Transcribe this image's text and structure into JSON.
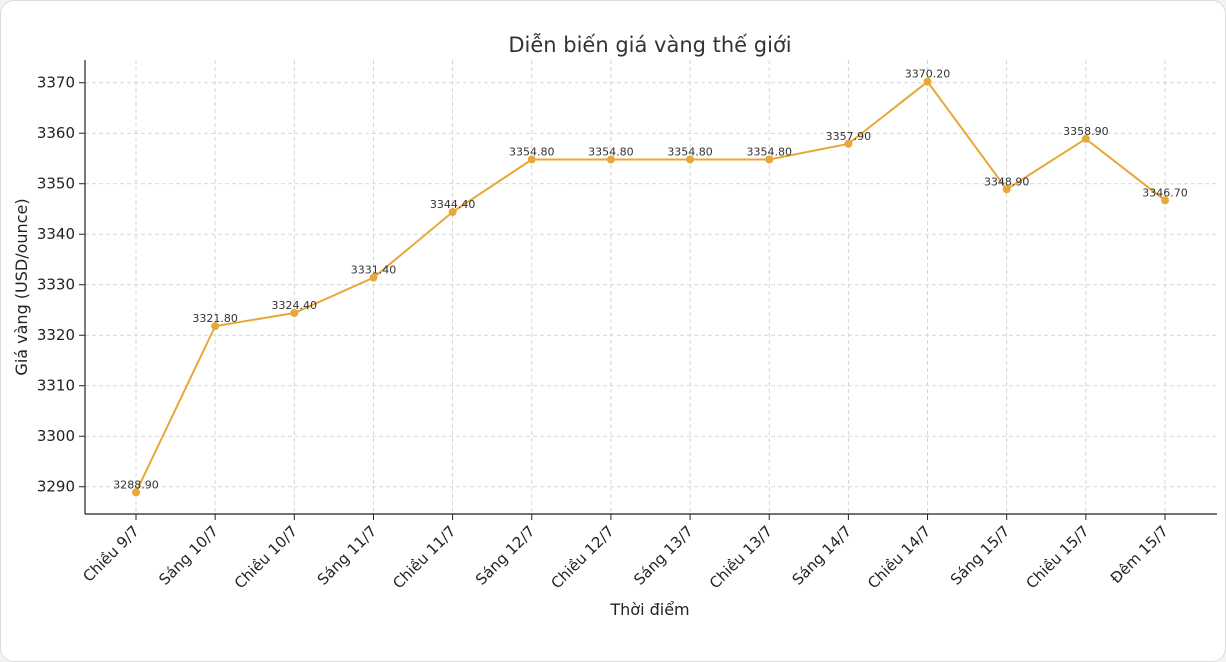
{
  "chart_data": {
    "type": "line",
    "title": "Diễn biến giá vàng thế giới",
    "xlabel": "Thời điểm",
    "ylabel": "Giá vàng (USD/ounce)",
    "categories": [
      "Chiều 9/7",
      "Sáng 10/7",
      "Chiều 10/7",
      "Sáng 11/7",
      "Chiều 11/7",
      "Sáng 12/7",
      "Chiều 12/7",
      "Sáng 13/7",
      "Chiều 13/7",
      "Sáng 14/7",
      "Chiều 14/7",
      "Sáng 15/7",
      "Chiều 15/7",
      "Đêm 15/7"
    ],
    "values": [
      3288.9,
      3321.8,
      3324.4,
      3331.4,
      3344.4,
      3354.8,
      3354.8,
      3354.8,
      3354.8,
      3357.9,
      3370.2,
      3348.9,
      3358.9,
      3346.7
    ],
    "value_labels": [
      "3288.90",
      "3321.80",
      "3324.40",
      "3331.40",
      "3344.40",
      "3354.80",
      "3354.80",
      "3354.80",
      "3354.80",
      "3357.90",
      "3370.20",
      "3348.90",
      "3358.90",
      "3346.70"
    ],
    "yticks": [
      "3290",
      "3300",
      "3310",
      "3320",
      "3330",
      "3340",
      "3350",
      "3360",
      "3370"
    ],
    "ylim": [
      3284.6,
      3374.5
    ],
    "grid": true,
    "line_color": "#E8A838",
    "grid_color": "#cccccc"
  }
}
